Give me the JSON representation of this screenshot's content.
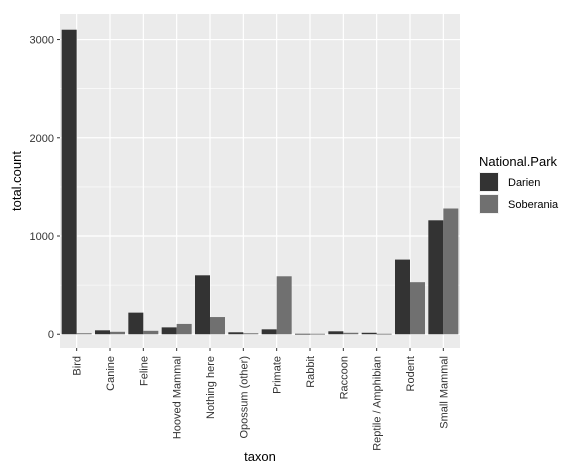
{
  "chart_data": {
    "type": "bar",
    "xlabel": "taxon",
    "ylabel": "total.count",
    "categories": [
      "Bird",
      "Canine",
      "Feline",
      "Hooved Mammal",
      "Nothing here",
      "Opossum (other)",
      "Primate",
      "Rabbit",
      "Raccoon",
      "Reptile / Amphibian",
      "Rodent",
      "Small Mammal"
    ],
    "series": [
      {
        "name": "Darien",
        "color": "#333333",
        "values": [
          3100,
          40,
          220,
          70,
          600,
          20,
          50,
          5,
          30,
          15,
          760,
          1160
        ]
      },
      {
        "name": "Soberania",
        "color": "#707070",
        "values": [
          10,
          25,
          35,
          105,
          175,
          10,
          590,
          5,
          15,
          5,
          530,
          1280
        ]
      }
    ],
    "ylim": [
      -140,
      3260
    ],
    "yticks": [
      0,
      1000,
      2000,
      3000
    ],
    "grid": true,
    "legend": {
      "title": "National.Park",
      "position": "right"
    },
    "panel_background": "#EBEBEB",
    "gridline_color": "#FFFFFF"
  }
}
